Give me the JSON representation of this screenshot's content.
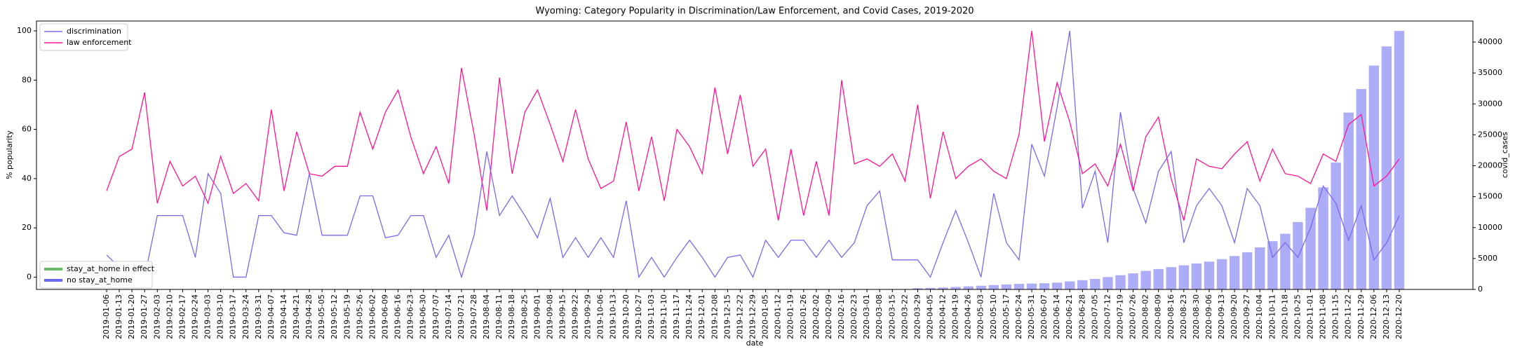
{
  "chart_data": {
    "type": "line",
    "title": "Wyoming: Category Popularity in Discrimination/Law Enforcement, and Covid Cases, 2019-2020",
    "x_label": "date",
    "y_label": "% popularity",
    "y2_label": "covid_cases",
    "categories": [
      "2019-01-06",
      "2019-01-13",
      "2019-01-20",
      "2019-01-27",
      "2019-02-03",
      "2019-02-10",
      "2019-02-17",
      "2019-02-24",
      "2019-03-03",
      "2019-03-10",
      "2019-03-17",
      "2019-03-24",
      "2019-03-31",
      "2019-04-07",
      "2019-04-14",
      "2019-04-21",
      "2019-04-28",
      "2019-05-05",
      "2019-05-12",
      "2019-05-19",
      "2019-05-26",
      "2019-06-02",
      "2019-06-09",
      "2019-06-16",
      "2019-06-23",
      "2019-06-30",
      "2019-07-07",
      "2019-07-14",
      "2019-07-21",
      "2019-07-28",
      "2019-08-04",
      "2019-08-11",
      "2019-08-18",
      "2019-08-25",
      "2019-09-01",
      "2019-09-08",
      "2019-09-15",
      "2019-09-22",
      "2019-09-29",
      "2019-10-06",
      "2019-10-13",
      "2019-10-20",
      "2019-10-27",
      "2019-11-03",
      "2019-11-10",
      "2019-11-17",
      "2019-11-24",
      "2019-12-01",
      "2019-12-08",
      "2019-12-15",
      "2019-12-22",
      "2019-12-29",
      "2020-01-05",
      "2020-01-12",
      "2020-01-19",
      "2020-01-26",
      "2020-02-02",
      "2020-02-09",
      "2020-02-16",
      "2020-02-23",
      "2020-03-01",
      "2020-03-08",
      "2020-03-15",
      "2020-03-22",
      "2020-03-29",
      "2020-04-05",
      "2020-04-12",
      "2020-04-19",
      "2020-04-26",
      "2020-05-03",
      "2020-05-10",
      "2020-05-17",
      "2020-05-24",
      "2020-05-31",
      "2020-06-07",
      "2020-06-14",
      "2020-06-21",
      "2020-06-28",
      "2020-07-05",
      "2020-07-12",
      "2020-07-19",
      "2020-07-26",
      "2020-08-02",
      "2020-08-09",
      "2020-08-16",
      "2020-08-23",
      "2020-08-30",
      "2020-09-06",
      "2020-09-13",
      "2020-09-20",
      "2020-09-27",
      "2020-10-04",
      "2020-10-11",
      "2020-10-18",
      "2020-10-25",
      "2020-11-01",
      "2020-11-08",
      "2020-11-15",
      "2020-11-22",
      "2020-11-29",
      "2020-12-06",
      "2020-12-13",
      "2020-12-20"
    ],
    "series": [
      {
        "type": "bar",
        "axis": "y2",
        "color": "#adadf7",
        "values": [
          null,
          null,
          null,
          null,
          null,
          null,
          null,
          null,
          null,
          null,
          null,
          null,
          null,
          null,
          null,
          null,
          null,
          null,
          null,
          null,
          null,
          null,
          null,
          null,
          null,
          null,
          null,
          null,
          null,
          null,
          null,
          null,
          null,
          null,
          null,
          null,
          null,
          null,
          null,
          null,
          null,
          null,
          null,
          null,
          null,
          null,
          null,
          null,
          null,
          null,
          null,
          null,
          null,
          null,
          null,
          null,
          null,
          null,
          null,
          null,
          null,
          null,
          null,
          30,
          200,
          250,
          300,
          400,
          500,
          600,
          700,
          800,
          900,
          950,
          1000,
          1100,
          1300,
          1500,
          1700,
          2000,
          2300,
          2600,
          3000,
          3300,
          3600,
          3900,
          4200,
          4500,
          4900,
          5400,
          6000,
          6800,
          7800,
          9000,
          10900,
          13200,
          16500,
          20500,
          28600,
          32400,
          36200,
          39300,
          41800
        ]
      },
      {
        "name": "discrimination",
        "type": "line",
        "color": "#7b68ee",
        "values": [
          9,
          4,
          0,
          0,
          25,
          25,
          25,
          8,
          42,
          34,
          0,
          0,
          25,
          25,
          18,
          17,
          42,
          17,
          17,
          17,
          33,
          33,
          16,
          17,
          25,
          25,
          8,
          17,
          0,
          17,
          51,
          25,
          33,
          25,
          16,
          32,
          8,
          16,
          8,
          16,
          8,
          31,
          0,
          8,
          0,
          8,
          15,
          8,
          0,
          8,
          9,
          0,
          15,
          8,
          15,
          15,
          8,
          15,
          8,
          14,
          29,
          35,
          7,
          7,
          7,
          0,
          14,
          27,
          14,
          0,
          34,
          14,
          7,
          54,
          41,
          69,
          100,
          28,
          43,
          14,
          67,
          36,
          22,
          43,
          51,
          14,
          29,
          36,
          29,
          14,
          36,
          29,
          8,
          14,
          8,
          20,
          37,
          30,
          15,
          29,
          7,
          14,
          25
        ]
      },
      {
        "name": "law enforcement",
        "type": "line",
        "color": "#ff1493",
        "values": [
          35,
          49,
          52,
          75,
          30,
          47,
          37,
          41,
          30,
          49,
          34,
          38,
          31,
          68,
          35,
          59,
          42,
          41,
          45,
          45,
          67,
          52,
          67,
          76,
          57,
          42,
          53,
          38,
          85,
          58,
          27,
          81,
          42,
          67,
          76,
          62,
          47,
          68,
          48,
          36,
          39,
          63,
          35,
          57,
          31,
          60,
          53,
          42,
          77,
          50,
          74,
          45,
          52,
          23,
          52,
          25,
          47,
          25,
          80,
          46,
          48,
          45,
          50,
          39,
          70,
          32,
          59,
          40,
          45,
          48,
          43,
          40,
          58,
          100,
          55,
          79,
          63,
          42,
          46,
          37,
          54,
          35,
          57,
          65,
          40,
          23,
          48,
          45,
          44,
          50,
          55,
          39,
          52,
          42,
          41,
          38,
          50,
          47,
          62,
          66,
          37,
          41,
          48
        ]
      }
    ],
    "legend_loc": "upper left",
    "legend2": [
      {
        "name": "stay_at_home in effect",
        "color": "#66bb6a"
      },
      {
        "name": "no stay_at_home",
        "color": "#6a6af0"
      }
    ],
    "legend2_loc": "lower left",
    "ylim": [
      -5,
      104
    ],
    "yticks": [
      0,
      20,
      40,
      60,
      80,
      100
    ],
    "y2lim": [
      0,
      43400
    ],
    "y2ticks": [
      0,
      5000,
      10000,
      15000,
      20000,
      25000,
      30000,
      35000,
      40000
    ],
    "grid": false
  }
}
